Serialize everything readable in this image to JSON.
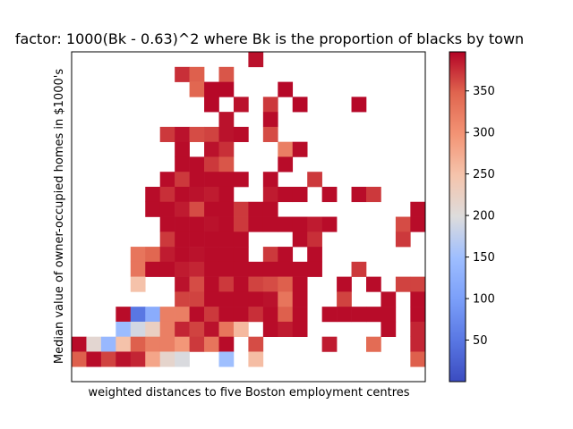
{
  "chart_data": {
    "type": "heatmap",
    "title": "factor: 1000(Bk - 0.63)^2 where Bk is the proportion of blacks by town",
    "xlabel": "weighted distances to five Boston employment centres",
    "ylabel": "Median value of owner-occupied homes in $1000's",
    "grid": false,
    "x_ticks_shown": false,
    "y_ticks_shown": false,
    "n_cols": 22,
    "n_rows": 22,
    "colorbar": {
      "colormap": "coolwarm",
      "min": 0,
      "max": 397,
      "ticks": [
        50,
        100,
        150,
        200,
        250,
        300,
        350
      ]
    },
    "cells": [
      [
        12,
        21,
        390
      ],
      [
        7,
        20,
        375
      ],
      [
        8,
        20,
        350
      ],
      [
        10,
        20,
        355
      ],
      [
        8,
        19,
        345
      ],
      [
        9,
        19,
        395
      ],
      [
        10,
        19,
        395
      ],
      [
        14,
        19,
        395
      ],
      [
        9,
        18,
        395
      ],
      [
        11,
        18,
        390
      ],
      [
        13,
        18,
        370
      ],
      [
        15,
        18,
        395
      ],
      [
        19,
        18,
        395
      ],
      [
        10,
        17,
        390
      ],
      [
        13,
        17,
        393
      ],
      [
        6,
        16,
        370
      ],
      [
        7,
        16,
        390
      ],
      [
        8,
        16,
        360
      ],
      [
        9,
        16,
        365
      ],
      [
        10,
        16,
        390
      ],
      [
        11,
        16,
        393
      ],
      [
        13,
        16,
        360
      ],
      [
        7,
        15,
        393
      ],
      [
        9,
        15,
        390
      ],
      [
        10,
        15,
        375
      ],
      [
        14,
        15,
        320
      ],
      [
        15,
        15,
        393
      ],
      [
        7,
        14,
        393
      ],
      [
        8,
        14,
        393
      ],
      [
        9,
        14,
        370
      ],
      [
        10,
        14,
        355
      ],
      [
        14,
        14,
        393
      ],
      [
        6,
        13,
        393
      ],
      [
        7,
        13,
        370
      ],
      [
        8,
        13,
        393
      ],
      [
        9,
        13,
        393
      ],
      [
        10,
        13,
        393
      ],
      [
        11,
        13,
        393
      ],
      [
        13,
        13,
        393
      ],
      [
        16,
        13,
        370
      ],
      [
        5,
        12,
        393
      ],
      [
        6,
        12,
        375
      ],
      [
        7,
        12,
        393
      ],
      [
        8,
        12,
        390
      ],
      [
        9,
        12,
        385
      ],
      [
        10,
        12,
        393
      ],
      [
        13,
        12,
        385
      ],
      [
        14,
        12,
        393
      ],
      [
        15,
        12,
        393
      ],
      [
        17,
        12,
        393
      ],
      [
        19,
        12,
        393
      ],
      [
        20,
        12,
        370
      ],
      [
        5,
        11,
        393
      ],
      [
        6,
        11,
        393
      ],
      [
        7,
        11,
        385
      ],
      [
        8,
        11,
        360
      ],
      [
        9,
        11,
        393
      ],
      [
        10,
        11,
        393
      ],
      [
        11,
        11,
        370
      ],
      [
        12,
        11,
        393
      ],
      [
        13,
        11,
        393
      ],
      [
        23,
        11,
        393
      ],
      [
        6,
        10,
        393
      ],
      [
        7,
        10,
        393
      ],
      [
        8,
        10,
        393
      ],
      [
        9,
        10,
        390
      ],
      [
        10,
        10,
        393
      ],
      [
        11,
        10,
        370
      ],
      [
        12,
        10,
        393
      ],
      [
        13,
        10,
        393
      ],
      [
        14,
        10,
        393
      ],
      [
        15,
        10,
        393
      ],
      [
        16,
        10,
        385
      ],
      [
        17,
        10,
        393
      ],
      [
        22,
        10,
        360
      ],
      [
        23,
        10,
        393
      ],
      [
        6,
        9,
        370
      ],
      [
        7,
        9,
        393
      ],
      [
        8,
        9,
        393
      ],
      [
        9,
        9,
        393
      ],
      [
        10,
        9,
        393
      ],
      [
        11,
        9,
        393
      ],
      [
        15,
        9,
        393
      ],
      [
        16,
        9,
        375
      ],
      [
        22,
        9,
        370
      ],
      [
        4,
        8,
        330
      ],
      [
        5,
        8,
        345
      ],
      [
        6,
        8,
        385
      ],
      [
        7,
        8,
        393
      ],
      [
        8,
        8,
        390
      ],
      [
        9,
        8,
        393
      ],
      [
        10,
        8,
        393
      ],
      [
        11,
        8,
        393
      ],
      [
        13,
        8,
        370
      ],
      [
        14,
        8,
        393
      ],
      [
        16,
        8,
        393
      ],
      [
        4,
        7,
        330
      ],
      [
        5,
        7,
        393
      ],
      [
        6,
        7,
        393
      ],
      [
        7,
        7,
        385
      ],
      [
        8,
        7,
        380
      ],
      [
        9,
        7,
        393
      ],
      [
        10,
        7,
        393
      ],
      [
        11,
        7,
        393
      ],
      [
        12,
        7,
        393
      ],
      [
        13,
        7,
        393
      ],
      [
        14,
        7,
        393
      ],
      [
        15,
        7,
        393
      ],
      [
        16,
        7,
        393
      ],
      [
        19,
        7,
        370
      ],
      [
        4,
        6,
        250
      ],
      [
        7,
        6,
        390
      ],
      [
        8,
        6,
        360
      ],
      [
        9,
        6,
        393
      ],
      [
        10,
        6,
        370
      ],
      [
        11,
        6,
        393
      ],
      [
        12,
        6,
        365
      ],
      [
        13,
        6,
        360
      ],
      [
        14,
        6,
        350
      ],
      [
        15,
        6,
        393
      ],
      [
        18,
        6,
        393
      ],
      [
        20,
        6,
        393
      ],
      [
        22,
        6,
        365
      ],
      [
        23,
        6,
        365
      ],
      [
        7,
        5,
        365
      ],
      [
        8,
        5,
        365
      ],
      [
        9,
        5,
        393
      ],
      [
        10,
        5,
        393
      ],
      [
        11,
        5,
        393
      ],
      [
        12,
        5,
        393
      ],
      [
        13,
        5,
        390
      ],
      [
        14,
        5,
        330
      ],
      [
        15,
        5,
        393
      ],
      [
        18,
        5,
        365
      ],
      [
        21,
        5,
        393
      ],
      [
        23,
        5,
        393
      ],
      [
        3,
        4,
        393
      ],
      [
        4,
        4,
        50
      ],
      [
        5,
        4,
        120
      ],
      [
        6,
        4,
        320
      ],
      [
        7,
        4,
        320
      ],
      [
        8,
        4,
        393
      ],
      [
        9,
        4,
        370
      ],
      [
        10,
        4,
        393
      ],
      [
        11,
        4,
        393
      ],
      [
        12,
        4,
        375
      ],
      [
        13,
        4,
        393
      ],
      [
        14,
        4,
        350
      ],
      [
        15,
        4,
        393
      ],
      [
        17,
        4,
        393
      ],
      [
        18,
        4,
        393
      ],
      [
        19,
        4,
        393
      ],
      [
        20,
        4,
        393
      ],
      [
        21,
        4,
        393
      ],
      [
        23,
        4,
        393
      ],
      [
        3,
        3,
        145
      ],
      [
        4,
        3,
        190
      ],
      [
        5,
        3,
        225
      ],
      [
        6,
        3,
        320
      ],
      [
        7,
        3,
        380
      ],
      [
        8,
        3,
        365
      ],
      [
        9,
        3,
        390
      ],
      [
        10,
        3,
        330
      ],
      [
        11,
        3,
        260
      ],
      [
        13,
        3,
        393
      ],
      [
        14,
        3,
        385
      ],
      [
        15,
        3,
        393
      ],
      [
        21,
        3,
        393
      ],
      [
        23,
        3,
        380
      ],
      [
        0,
        2,
        393
      ],
      [
        1,
        2,
        210
      ],
      [
        2,
        2,
        140
      ],
      [
        3,
        2,
        250
      ],
      [
        4,
        2,
        350
      ],
      [
        5,
        2,
        320
      ],
      [
        6,
        2,
        320
      ],
      [
        7,
        2,
        295
      ],
      [
        8,
        2,
        370
      ],
      [
        9,
        2,
        330
      ],
      [
        10,
        2,
        393
      ],
      [
        12,
        2,
        360
      ],
      [
        17,
        2,
        385
      ],
      [
        20,
        2,
        340
      ],
      [
        23,
        2,
        380
      ],
      [
        0,
        1,
        350
      ],
      [
        1,
        1,
        393
      ],
      [
        2,
        1,
        365
      ],
      [
        3,
        1,
        390
      ],
      [
        4,
        1,
        380
      ],
      [
        5,
        1,
        280
      ],
      [
        6,
        1,
        215
      ],
      [
        7,
        1,
        195
      ],
      [
        10,
        1,
        150
      ],
      [
        12,
        1,
        255
      ],
      [
        23,
        1,
        350
      ]
    ]
  }
}
